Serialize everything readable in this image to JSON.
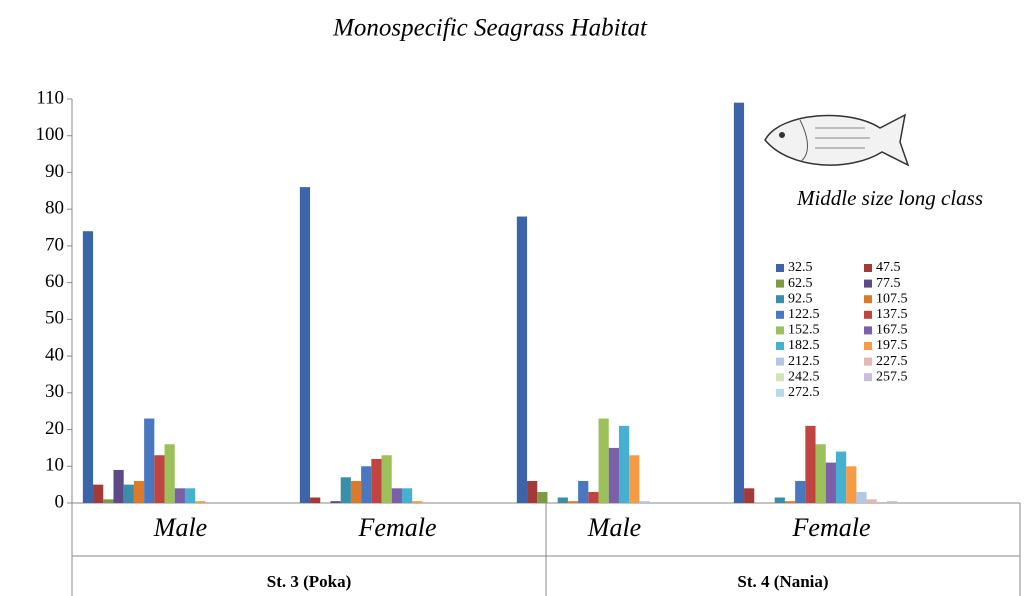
{
  "chart_data": {
    "type": "bar",
    "title": "Monospecific Seagrass Habitat",
    "legend_title": "Middle size long class",
    "categories": [
      "Male",
      "Female",
      "Male",
      "Female"
    ],
    "groups": [
      "St. 3 (Poka)",
      "St. 4 (Nania)"
    ],
    "ylim": [
      0,
      110
    ],
    "yticks": [
      0,
      10,
      20,
      30,
      40,
      50,
      60,
      70,
      80,
      90,
      100,
      110
    ],
    "grid": false,
    "legend": "right",
    "series": [
      {
        "name": "32.5",
        "color": "#3c64a8",
        "values": [
          74,
          86,
          78,
          109
        ]
      },
      {
        "name": "47.5",
        "color": "#a23b38",
        "values": [
          5,
          1.5,
          6,
          4
        ]
      },
      {
        "name": "62.5",
        "color": "#7f9a45",
        "values": [
          1,
          0,
          3,
          0
        ]
      },
      {
        "name": "77.5",
        "color": "#5d4a86",
        "values": [
          9,
          0.5,
          0,
          0
        ]
      },
      {
        "name": "92.5",
        "color": "#3a8ea8",
        "values": [
          5,
          7,
          1.5,
          1.5
        ]
      },
      {
        "name": "107.5",
        "color": "#dc7a2c",
        "values": [
          6,
          6,
          0.5,
          0.5
        ]
      },
      {
        "name": "122.5",
        "color": "#4a78c0",
        "values": [
          23,
          10,
          6,
          6
        ]
      },
      {
        "name": "137.5",
        "color": "#c0443f",
        "values": [
          13,
          12,
          3,
          21
        ]
      },
      {
        "name": "152.5",
        "color": "#9cc05a",
        "values": [
          16,
          13,
          23,
          16
        ]
      },
      {
        "name": "167.5",
        "color": "#7b5fa8",
        "values": [
          4,
          4,
          15,
          11
        ]
      },
      {
        "name": "182.5",
        "color": "#45b0d0",
        "values": [
          4,
          4,
          21,
          14
        ]
      },
      {
        "name": "197.5",
        "color": "#f59a45",
        "values": [
          0.5,
          0.5,
          13,
          10
        ]
      },
      {
        "name": "212.5",
        "color": "#b4c7e5",
        "values": [
          0,
          0,
          0.5,
          3
        ]
      },
      {
        "name": "227.5",
        "color": "#e4b6b4",
        "values": [
          0,
          0,
          0,
          1
        ]
      },
      {
        "name": "242.5",
        "color": "#d4e2b8",
        "values": [
          0,
          0,
          0,
          0
        ]
      },
      {
        "name": "257.5",
        "color": "#c8bedb",
        "values": [
          0,
          0,
          0,
          0.5
        ]
      },
      {
        "name": "272.5",
        "color": "#b4dbe6",
        "values": [
          0,
          0,
          0,
          0
        ]
      }
    ]
  }
}
